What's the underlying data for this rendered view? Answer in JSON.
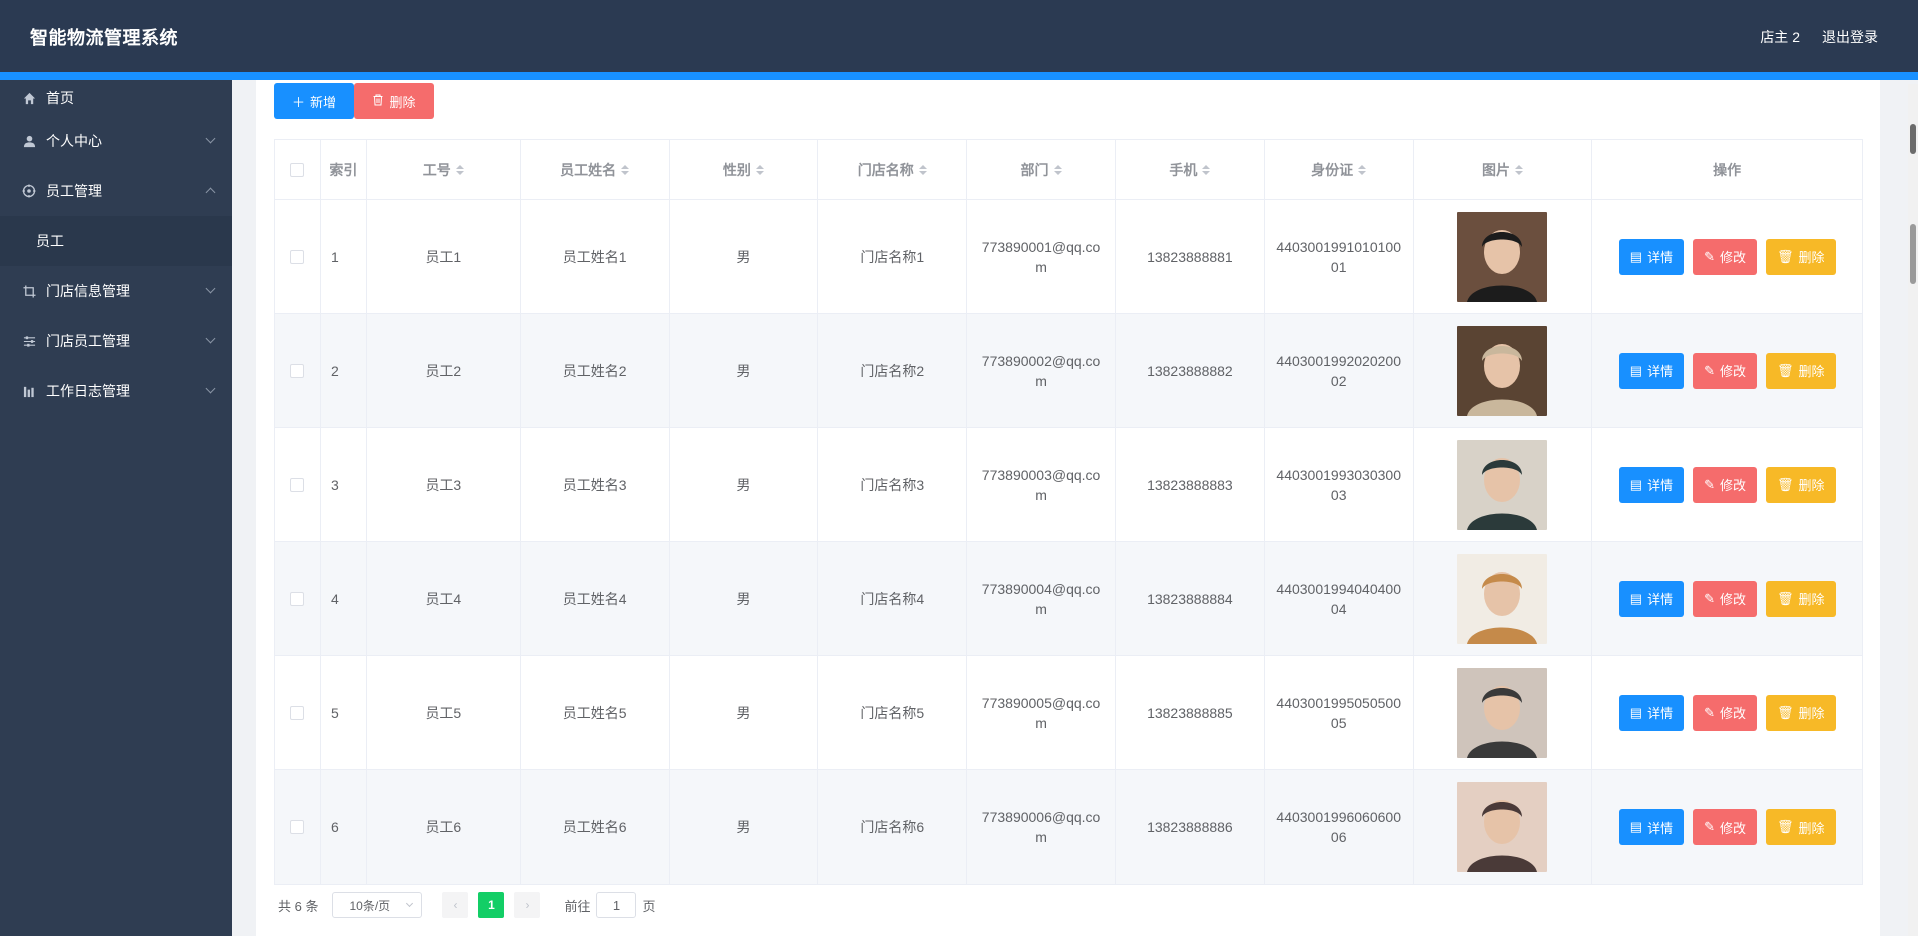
{
  "header": {
    "title": "智能物流管理系统",
    "user": "店主 2",
    "logout": "退出登录"
  },
  "sidebar": {
    "items": [
      {
        "label": "首页",
        "icon": "home-icon"
      },
      {
        "label": "个人中心",
        "icon": "user-icon"
      },
      {
        "label": "员工管理",
        "icon": "cog-icon"
      },
      {
        "label": "员工",
        "icon": ""
      },
      {
        "label": "门店信息管理",
        "icon": "crop-icon"
      },
      {
        "label": "门店员工管理",
        "icon": "sliders-icon"
      },
      {
        "label": "工作日志管理",
        "icon": "chart-icon"
      }
    ]
  },
  "toolbar": {
    "add_label": "新增",
    "delete_label": "删除"
  },
  "table": {
    "columns": [
      "索引",
      "工号",
      "员工姓名",
      "性别",
      "门店名称",
      "部门",
      "手机",
      "身份证",
      "图片",
      "操作"
    ],
    "rows": [
      {
        "index": "1",
        "id": "员工1",
        "name": "员工姓名1",
        "gender": "男",
        "store": "门店名称1",
        "dept": "773890001@qq.com",
        "phone": "13823888881",
        "idcard": "440300199101010001"
      },
      {
        "index": "2",
        "id": "员工2",
        "name": "员工姓名2",
        "gender": "男",
        "store": "门店名称2",
        "dept": "773890002@qq.com",
        "phone": "13823888882",
        "idcard": "440300199202020002"
      },
      {
        "index": "3",
        "id": "员工3",
        "name": "员工姓名3",
        "gender": "男",
        "store": "门店名称3",
        "dept": "773890003@qq.com",
        "phone": "13823888883",
        "idcard": "440300199303030003"
      },
      {
        "index": "4",
        "id": "员工4",
        "name": "员工姓名4",
        "gender": "男",
        "store": "门店名称4",
        "dept": "773890004@qq.com",
        "phone": "13823888884",
        "idcard": "440300199404040004"
      },
      {
        "index": "5",
        "id": "员工5",
        "name": "员工姓名5",
        "gender": "男",
        "store": "门店名称5",
        "dept": "773890005@qq.com",
        "phone": "13823888885",
        "idcard": "440300199505050005"
      },
      {
        "index": "6",
        "id": "员工6",
        "name": "员工姓名6",
        "gender": "男",
        "store": "门店名称6",
        "dept": "773890006@qq.com",
        "phone": "13823888886",
        "idcard": "440300199606060006"
      }
    ],
    "actions": {
      "detail": "详情",
      "edit": "修改",
      "delete": "删除"
    }
  },
  "pagination": {
    "total": "共 6 条",
    "page_size": "10条/页",
    "current_page": "1",
    "goto_prefix": "前往",
    "goto_value": "1",
    "goto_suffix": "页"
  },
  "colors": {
    "header": "#2b3a52",
    "sidebar": "#2f3d52",
    "primary": "#1890ff",
    "danger": "#f56c6c",
    "warning": "#f7b927",
    "success": "#13ce66"
  }
}
